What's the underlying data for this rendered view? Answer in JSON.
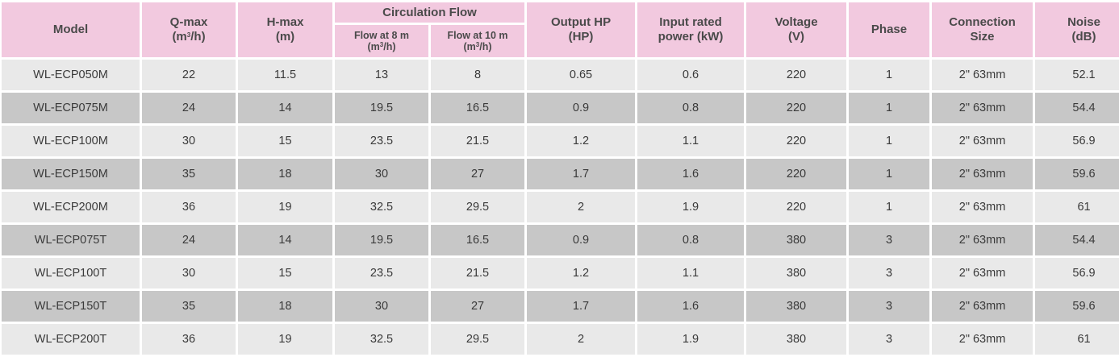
{
  "table": {
    "headers": {
      "model": "Model",
      "qmax": {
        "line1": "Q-max",
        "line2_pre": "(m",
        "line2_sup": "3",
        "line2_post": "/h)"
      },
      "hmax": {
        "line1": "H-max",
        "line2": "(m)"
      },
      "circulation_flow": "Circulation Flow",
      "flow8": {
        "line1": "Flow at 8 m",
        "line2_pre": "(m",
        "line2_sup": "3",
        "line2_post": "/h)"
      },
      "flow10": {
        "line1": "Flow at 10 m",
        "line2_pre": "(m",
        "line2_sup": "3",
        "line2_post": "/h)"
      },
      "output_hp": {
        "line1": "Output HP",
        "line2": "(HP)"
      },
      "input_power": {
        "line1": "Input rated",
        "line2": "power (kW)"
      },
      "voltage": {
        "line1": "Voltage",
        "line2": "(V)"
      },
      "phase": "Phase",
      "connection": {
        "line1": "Connection",
        "line2": "Size"
      },
      "noise": {
        "line1": "Noise",
        "line2": "(dB)"
      }
    },
    "rows": [
      [
        "WL-ECP050M",
        "22",
        "11.5",
        "13",
        "8",
        "0.65",
        "0.6",
        "220",
        "1",
        "2\"  63mm",
        "52.1"
      ],
      [
        "WL-ECP075M",
        "24",
        "14",
        "19.5",
        "16.5",
        "0.9",
        "0.8",
        "220",
        "1",
        "2\"  63mm",
        "54.4"
      ],
      [
        "WL-ECP100M",
        "30",
        "15",
        "23.5",
        "21.5",
        "1.2",
        "1.1",
        "220",
        "1",
        "2\"  63mm",
        "56.9"
      ],
      [
        "WL-ECP150M",
        "35",
        "18",
        "30",
        "27",
        "1.7",
        "1.6",
        "220",
        "1",
        "2\"  63mm",
        "59.6"
      ],
      [
        "WL-ECP200M",
        "36",
        "19",
        "32.5",
        "29.5",
        "2",
        "1.9",
        "220",
        "1",
        "2\"  63mm",
        "61"
      ],
      [
        "WL-ECP075T",
        "24",
        "14",
        "19.5",
        "16.5",
        "0.9",
        "0.8",
        "380",
        "3",
        "2\"  63mm",
        "54.4"
      ],
      [
        "WL-ECP100T",
        "30",
        "15",
        "23.5",
        "21.5",
        "1.2",
        "1.1",
        "380",
        "3",
        "2\"  63mm",
        "56.9"
      ],
      [
        "WL-ECP150T",
        "35",
        "18",
        "30",
        "27",
        "1.7",
        "1.6",
        "380",
        "3",
        "2\"  63mm",
        "59.6"
      ],
      [
        "WL-ECP200T",
        "36",
        "19",
        "32.5",
        "29.5",
        "2",
        "1.9",
        "380",
        "3",
        "2\"  63mm",
        "61"
      ]
    ]
  },
  "colors": {
    "header_bg": "#f2c9df",
    "row_light": "#e9e9e9",
    "row_dark": "#c7c7c7"
  }
}
